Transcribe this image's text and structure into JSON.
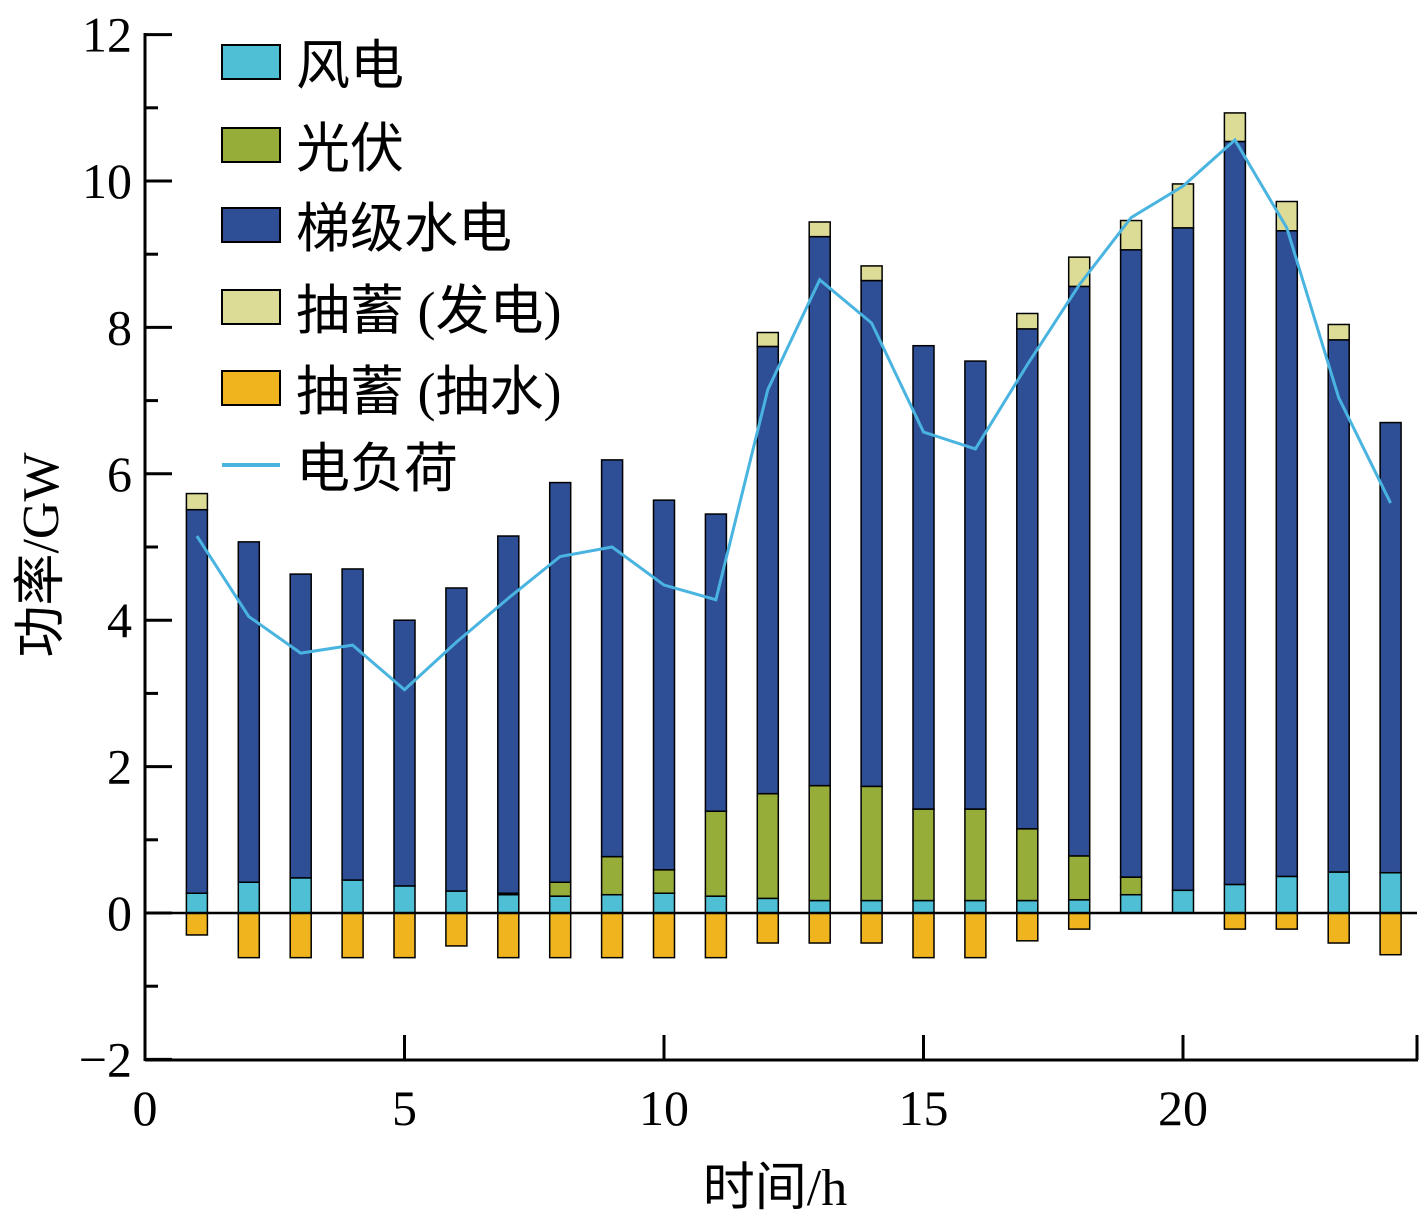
{
  "chart_data": {
    "type": "bar",
    "stacked": true,
    "xlabel": "时间/h",
    "ylabel": "功率/GW",
    "xlim": [
      0,
      24.5
    ],
    "ylim": [
      -2,
      12
    ],
    "xticks": [
      "0",
      "5",
      "10",
      "15",
      "20"
    ],
    "yticks": [
      "−2",
      "0",
      "2",
      "4",
      "6",
      "8",
      "10",
      "12"
    ],
    "legend_position": "top-left",
    "x": [
      1,
      2,
      3,
      4,
      5,
      6,
      7,
      8,
      9,
      10,
      11,
      12,
      13,
      14,
      15,
      16,
      17,
      18,
      19,
      20,
      21,
      22,
      23,
      24
    ],
    "series": [
      {
        "name": "风电",
        "color": "#4fbfd6",
        "values": [
          0.27,
          0.42,
          0.48,
          0.45,
          0.37,
          0.3,
          0.25,
          0.23,
          0.25,
          0.27,
          0.23,
          0.2,
          0.17,
          0.17,
          0.17,
          0.17,
          0.17,
          0.18,
          0.25,
          0.31,
          0.39,
          0.5,
          0.56,
          0.55
        ]
      },
      {
        "name": "光伏",
        "color": "#96ad3a",
        "values": [
          0,
          0,
          0,
          0,
          0,
          0,
          0.02,
          0.19,
          0.52,
          0.32,
          1.16,
          1.43,
          1.57,
          1.56,
          1.25,
          1.25,
          0.98,
          0.6,
          0.24,
          0,
          0,
          0,
          0,
          0
        ]
      },
      {
        "name": "梯级水电",
        "color": "#2e4e96",
        "values": [
          5.24,
          4.65,
          4.15,
          4.25,
          3.63,
          4.14,
          4.88,
          5.46,
          5.42,
          5.05,
          4.06,
          6.11,
          7.5,
          6.91,
          6.33,
          6.12,
          6.83,
          7.78,
          8.57,
          9.05,
          10.15,
          8.82,
          7.27,
          6.15
        ]
      },
      {
        "name": "抽蓄 (发电)",
        "color": "#dcdc96",
        "values": [
          0.22,
          0,
          0,
          0,
          0,
          0,
          0,
          0,
          0,
          0,
          0,
          0.19,
          0.2,
          0.2,
          0,
          0,
          0.21,
          0.4,
          0.4,
          0.6,
          0.39,
          0.4,
          0.21,
          0
        ]
      },
      {
        "name": "抽蓄 (抽水)",
        "color": "#f0b41e",
        "values": [
          -0.3,
          -0.61,
          -0.61,
          -0.61,
          -0.61,
          -0.45,
          -0.61,
          -0.61,
          -0.61,
          -0.61,
          -0.61,
          -0.41,
          -0.41,
          -0.41,
          -0.61,
          -0.61,
          -0.38,
          -0.22,
          0,
          0,
          -0.22,
          -0.22,
          -0.41,
          -0.57
        ]
      }
    ],
    "line": {
      "name": "电负荷",
      "color": "#4ab4e0",
      "values": [
        5.15,
        4.05,
        3.55,
        3.66,
        3.05,
        3.7,
        4.3,
        4.87,
        5.0,
        4.48,
        4.28,
        7.15,
        8.65,
        8.06,
        6.57,
        6.34,
        7.49,
        8.58,
        9.5,
        9.93,
        10.56,
        9.36,
        7.04,
        5.6
      ]
    }
  }
}
